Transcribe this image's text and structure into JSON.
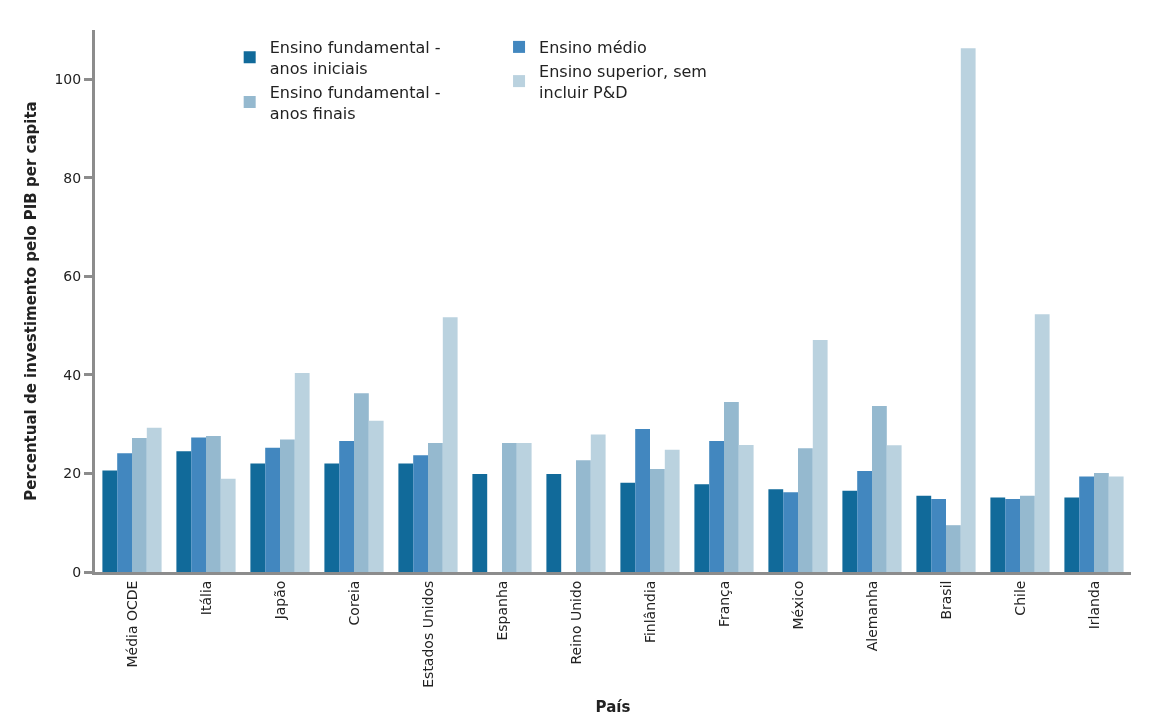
{
  "chart_data": {
    "type": "bar",
    "xlabel": "País",
    "ylabel": "Percentual de investimento pelo PIB per capita",
    "categories": [
      "Média OCDE",
      "Itália",
      "Japão",
      "Coreia",
      "Estados Unidos",
      "Espanha",
      "Reino Unido",
      "Finlândia",
      "França",
      "México",
      "Alemanha",
      "Brasil",
      "Chile",
      "Irlanda"
    ],
    "series": [
      {
        "name": "Ensino fundamental - anos iniciais",
        "color": "#116a9a",
        "values": [
          20.6,
          24.5,
          22.0,
          22.0,
          22.0,
          19.9,
          19.9,
          18.1,
          17.8,
          16.8,
          16.5,
          15.5,
          15.1,
          15.1
        ]
      },
      {
        "name": "Ensino médio",
        "color": "#4287bf",
        "values": [
          24.1,
          27.3,
          25.2,
          26.6,
          23.7,
          null,
          null,
          29.0,
          26.6,
          16.2,
          20.5,
          14.8,
          14.8,
          19.4
        ]
      },
      {
        "name": "Ensino fundamental - anos finais",
        "color": "#95b9cf",
        "values": [
          27.2,
          27.6,
          26.9,
          36.3,
          26.2,
          26.2,
          22.7,
          20.9,
          34.5,
          25.1,
          33.7,
          9.5,
          15.5,
          20.1
        ]
      },
      {
        "name": "Ensino superior, sem incluir P&D",
        "color": "#bad2df",
        "values": [
          29.3,
          18.9,
          40.4,
          30.7,
          51.7,
          26.2,
          27.9,
          24.8,
          25.8,
          47.1,
          25.7,
          106.3,
          52.3,
          19.4
        ]
      }
    ],
    "ylim": [
      0,
      110
    ],
    "yticks": [
      0,
      20,
      40,
      60,
      80,
      100
    ],
    "legend": "top"
  }
}
